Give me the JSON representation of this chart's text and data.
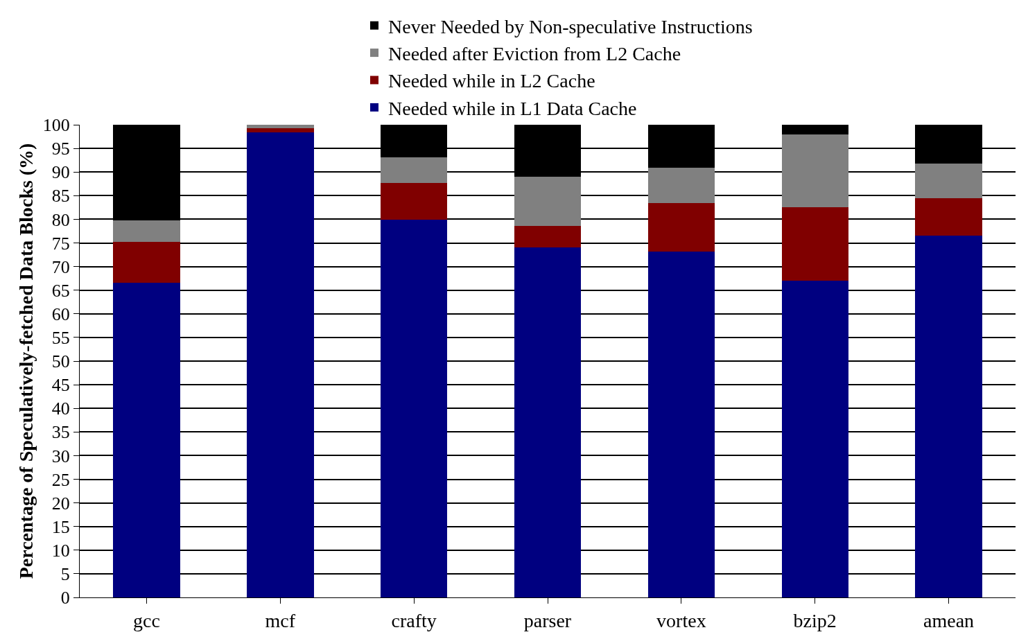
{
  "chart_data": {
    "type": "bar",
    "stacked": true,
    "ylabel": "Percentage of Speculatively-fetched Data Blocks (%)",
    "categories": [
      "gcc",
      "mcf",
      "crafty",
      "parser",
      "vortex",
      "bzip2",
      "amean"
    ],
    "series": [
      {
        "name": "Needed while in L1 Data Cache",
        "color": "#000080",
        "values": [
          66.5,
          98.4,
          79.9,
          74.0,
          73.1,
          67.0,
          76.5
        ]
      },
      {
        "name": "Needed while in L2 Cache",
        "color": "#800000",
        "values": [
          8.7,
          0.9,
          7.8,
          4.6,
          10.3,
          15.5,
          7.9
        ]
      },
      {
        "name": "Needed after Eviction from L2 Cache",
        "color": "#808080",
        "values": [
          4.5,
          0.7,
          5.4,
          10.4,
          7.5,
          15.4,
          7.4
        ]
      },
      {
        "name": "Never Needed by Non-speculative Instructions",
        "color": "#000000",
        "values": [
          20.3,
          0,
          6.9,
          11.0,
          9.1,
          2.1,
          8.2
        ]
      }
    ],
    "ylim": [
      0,
      100
    ],
    "yticks": [
      0,
      5,
      10,
      15,
      20,
      25,
      30,
      35,
      40,
      45,
      50,
      55,
      60,
      65,
      70,
      75,
      80,
      85,
      90,
      95,
      100
    ],
    "grid": "y",
    "legend": "top"
  }
}
